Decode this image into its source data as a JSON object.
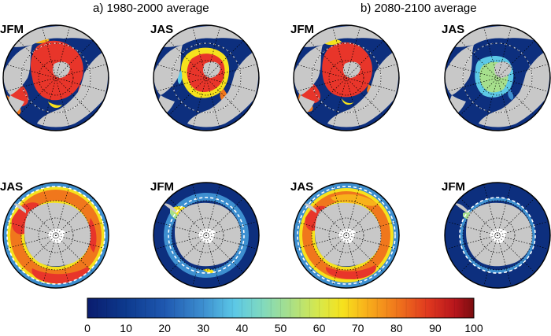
{
  "titles": {
    "left": "a) 1980-2000 average",
    "right": "b) 2080-2100 average"
  },
  "panels": [
    {
      "id": "a-north-winter",
      "label": "JFM",
      "hemisphere": "north",
      "period": "1980-2000"
    },
    {
      "id": "a-north-summer",
      "label": "JAS",
      "hemisphere": "north",
      "period": "1980-2000"
    },
    {
      "id": "b-north-winter",
      "label": "JFM",
      "hemisphere": "north",
      "period": "2080-2100"
    },
    {
      "id": "b-north-summer",
      "label": "JAS",
      "hemisphere": "north",
      "period": "2080-2100"
    },
    {
      "id": "a-south-winter",
      "label": "JAS",
      "hemisphere": "south",
      "period": "1980-2000"
    },
    {
      "id": "a-south-summer",
      "label": "JFM",
      "hemisphere": "south",
      "period": "1980-2000"
    },
    {
      "id": "b-south-winter",
      "label": "JAS",
      "hemisphere": "south",
      "period": "2080-2100"
    },
    {
      "id": "b-south-summer",
      "label": "JFM",
      "hemisphere": "south",
      "period": "2080-2100"
    }
  ],
  "colorbar": {
    "min": 0,
    "max": 100,
    "ticks": [
      "0",
      "10",
      "20",
      "30",
      "40",
      "50",
      "60",
      "70",
      "80",
      "90",
      "100"
    ]
  },
  "colors": {
    "ocean": "#0d2f7e",
    "land": "#c8c8c8",
    "antarctic_ice_shelf": "#ffffff",
    "ice_edge": "#ffffff",
    "grid": "#000000"
  }
}
